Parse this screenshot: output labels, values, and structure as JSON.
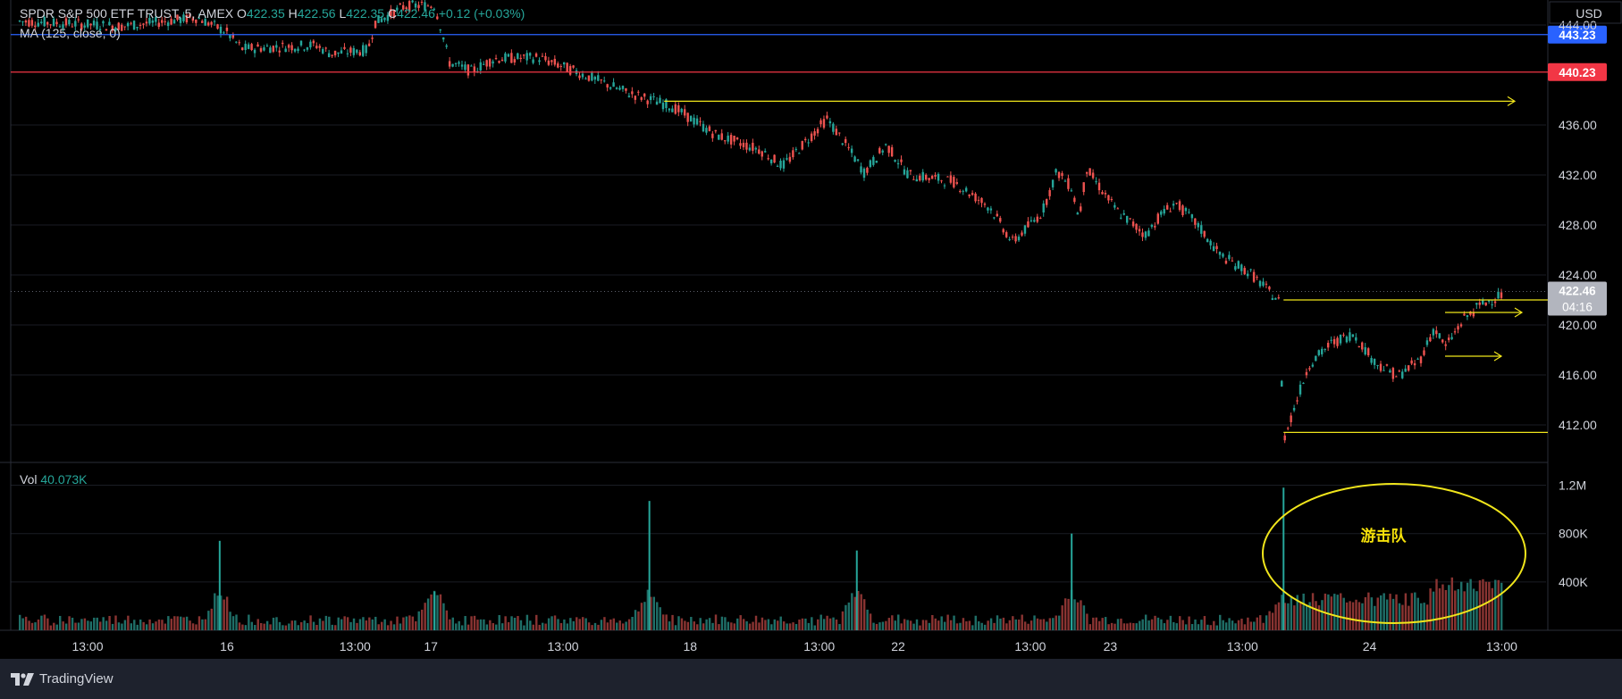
{
  "header": {
    "symbol_text": "SPDR S&P 500 ETF TRUST, 5, AMEX",
    "o_label": "O",
    "o_value": "422.35",
    "h_label": "H",
    "h_value": "422.56",
    "l_label": "L",
    "l_value": "422.35",
    "c_label": "C",
    "c_value": "422.46",
    "change_text": "+0.12 (+0.03%)",
    "ma_text": "MA (125, close, 0)",
    "vol_label": "Vol",
    "vol_value": "40.073K"
  },
  "currency": "USD",
  "brand": "TradingView",
  "annotation": "游击队",
  "colors": {
    "up": "#26a69a",
    "down": "#ef5350",
    "ray": "#f0e51b",
    "blue_line": "#2962ff",
    "red_line": "#f23645",
    "current_tag": "#b2b5be"
  },
  "chart_data": {
    "type": "candlestick",
    "symbol": "SPDR S&P 500 ETF TRUST",
    "interval": "5",
    "exchange": "AMEX",
    "ylim": [
      409.0,
      446.0
    ],
    "y_ticks": [
      412.0,
      416.0,
      420.0,
      424.0,
      428.0,
      432.0,
      436.0,
      444.0
    ],
    "y_tick_labels": [
      "412.00",
      "416.00",
      "420.00",
      "424.00",
      "428.00",
      "432.00",
      "436.00",
      "444.00"
    ],
    "x_tick_labels": [
      "13:00",
      "16",
      "13:00",
      "17",
      "13:00",
      "18",
      "13:00",
      "22",
      "13:00",
      "23",
      "13:00",
      "24",
      "13:00"
    ],
    "price_path": [
      [
        0,
        444.3
      ],
      [
        0.07,
        443.9
      ],
      [
        0.12,
        444.6
      ],
      [
        0.14,
        443.4
      ],
      [
        0.15,
        442.1
      ],
      [
        0.2,
        442.4
      ],
      [
        0.21,
        441.7
      ],
      [
        0.235,
        442.0
      ],
      [
        0.24,
        444.2
      ],
      [
        0.26,
        445.5
      ],
      [
        0.28,
        445.6
      ],
      [
        0.285,
        443.5
      ],
      [
        0.29,
        441.0
      ],
      [
        0.305,
        440.3
      ],
      [
        0.32,
        441.3
      ],
      [
        0.35,
        441.4
      ],
      [
        0.375,
        440.3
      ],
      [
        0.41,
        438.6
      ],
      [
        0.44,
        437.5
      ],
      [
        0.47,
        435.2
      ],
      [
        0.5,
        434.0
      ],
      [
        0.515,
        432.7
      ],
      [
        0.53,
        434.6
      ],
      [
        0.545,
        436.5
      ],
      [
        0.56,
        434.0
      ],
      [
        0.57,
        432.2
      ],
      [
        0.585,
        434.4
      ],
      [
        0.6,
        432.0
      ],
      [
        0.63,
        431.5
      ],
      [
        0.655,
        429.4
      ],
      [
        0.67,
        426.6
      ],
      [
        0.69,
        429.0
      ],
      [
        0.7,
        432.3
      ],
      [
        0.71,
        431.0
      ],
      [
        0.715,
        428.5
      ],
      [
        0.72,
        432.5
      ],
      [
        0.74,
        429.2
      ],
      [
        0.76,
        427.2
      ],
      [
        0.77,
        428.8
      ],
      [
        0.78,
        429.8
      ],
      [
        0.795,
        428.0
      ],
      [
        0.81,
        425.6
      ],
      [
        0.83,
        424.2
      ],
      [
        0.85,
        421.9
      ],
      [
        0.853,
        410.8
      ],
      [
        0.86,
        413.3
      ],
      [
        0.87,
        416.8
      ],
      [
        0.885,
        418.5
      ],
      [
        0.9,
        419.3
      ],
      [
        0.915,
        417.0
      ],
      [
        0.93,
        415.9
      ],
      [
        0.945,
        417.2
      ],
      [
        0.955,
        419.8
      ],
      [
        0.962,
        418.2
      ],
      [
        0.975,
        420.5
      ],
      [
        0.985,
        421.5
      ],
      [
        1.0,
        422.46
      ]
    ],
    "horizontal_lines": [
      {
        "price": 443.23,
        "color": "blue",
        "label": "443.23"
      },
      {
        "price": 440.23,
        "color": "red",
        "label": "440.23"
      }
    ],
    "ray_levels": [
      437.9,
      422.0,
      421.0,
      417.5,
      411.4
    ],
    "current_price": "422.46",
    "countdown": "04:16",
    "volume": {
      "label": "Vol",
      "last": "40.073K",
      "ylim": [
        0,
        1300000
      ],
      "y_tick_labels": [
        "400K",
        "800K",
        "1.2M"
      ],
      "y_ticks": [
        400000,
        800000,
        1200000
      ],
      "spikes": [
        {
          "pos": 0.135,
          "value": 740000
        },
        {
          "pos": 0.28,
          "value": 320000
        },
        {
          "pos": 0.28,
          "value": 290000
        },
        {
          "pos": 0.425,
          "value": 1070000
        },
        {
          "pos": 0.565,
          "value": 660000
        },
        {
          "pos": 0.71,
          "value": 800000
        },
        {
          "pos": 0.853,
          "value": 1180000
        }
      ]
    }
  }
}
